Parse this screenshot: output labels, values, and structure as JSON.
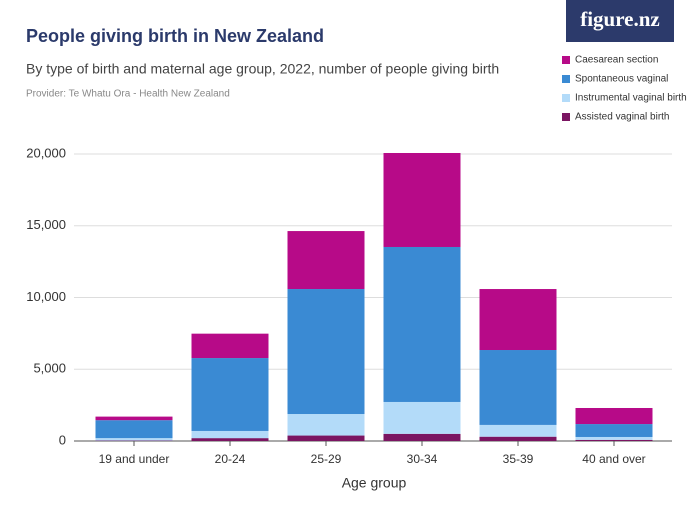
{
  "logo": "figure.nz",
  "chart_data": {
    "type": "stacked-bar",
    "title": "People giving birth in New Zealand",
    "subtitle": "By type of birth and maternal age group, 2022, number of people giving birth",
    "provider": "Provider: Te Whatu Ora - Health New Zealand",
    "x_label": "Age group",
    "categories": [
      "19 and under",
      "20-24",
      "25-29",
      "30-34",
      "35-39",
      "40 and over"
    ],
    "series": [
      {
        "name": "Assisted vaginal birth",
        "color": "#7b1562",
        "values": [
          30,
          200,
          380,
          500,
          300,
          80
        ]
      },
      {
        "name": "Instrumental vaginal birth",
        "color": "#b3dbf9",
        "values": [
          170,
          500,
          1500,
          2220,
          820,
          200
        ]
      },
      {
        "name": "Spontaneous vaginal",
        "color": "#3a8ad3",
        "values": [
          1250,
          5080,
          8710,
          10800,
          5220,
          900
        ]
      },
      {
        "name": "Caesarean section",
        "color": "#b70a88",
        "values": [
          250,
          1700,
          4040,
          6550,
          4250,
          1120
        ]
      }
    ],
    "ylim": [
      0,
      20000
    ],
    "yticks": [
      0,
      {
        "value": 5000,
        "label": "5,000"
      },
      {
        "value": 10000,
        "label": "10,000"
      },
      {
        "value": 15000,
        "label": "15,000"
      },
      {
        "value": 20000,
        "label": "20,000"
      }
    ],
    "grid": true,
    "legend": "top-right"
  }
}
